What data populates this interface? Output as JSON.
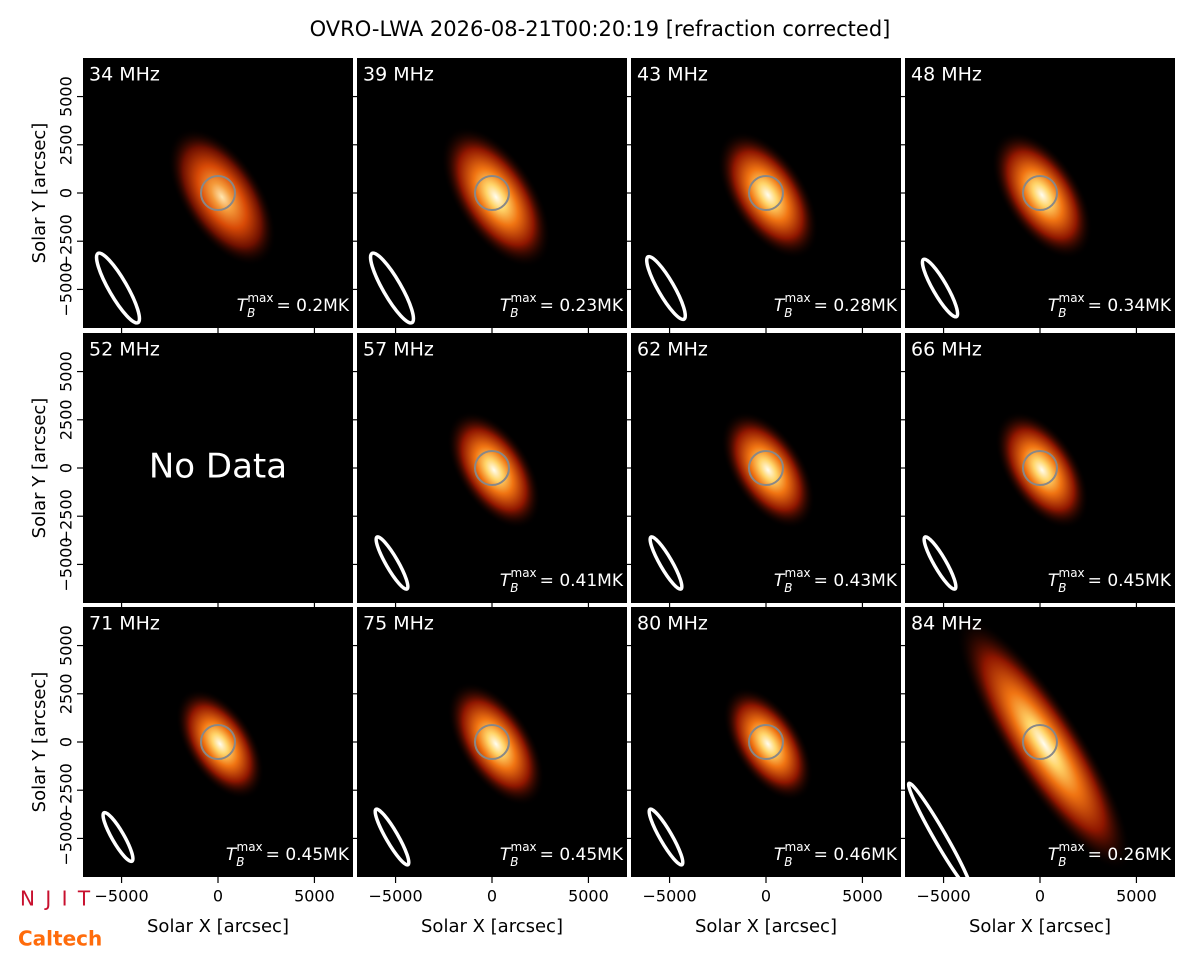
{
  "chart_data": {
    "type": "image-grid",
    "title": "OVRO-LWA 2026-08-21T00:20:19 [refraction corrected]",
    "xlabel": "Solar X [arcsec]",
    "ylabel": "Solar Y [arcsec]",
    "xlim": [
      -7000,
      7000
    ],
    "ylim": [
      -7000,
      7000
    ],
    "xticks": [
      {
        "value": -5000,
        "label": "−5000"
      },
      0,
      5000
    ],
    "yticks": [
      {
        "value": -5000,
        "label": "−5000"
      },
      {
        "value": -2500,
        "label": "−2500"
      },
      0,
      2500,
      5000
    ],
    "tb_symbol": "T",
    "tb_sub": "B",
    "tb_sup": "max",
    "panels": [
      {
        "label": "34 MHz",
        "tb_max_label": "= 0.2MK"
      },
      {
        "label": "39 MHz",
        "tb_max_label": "= 0.23MK"
      },
      {
        "label": "43 MHz",
        "tb_max_label": "= 0.28MK"
      },
      {
        "label": "48 MHz",
        "tb_max_label": "= 0.34MK"
      },
      {
        "label": "52 MHz",
        "note": "No Data"
      },
      {
        "label": "57 MHz",
        "tb_max_label": "= 0.41MK"
      },
      {
        "label": "62 MHz",
        "tb_max_label": "= 0.43MK"
      },
      {
        "label": "66 MHz",
        "tb_max_label": "= 0.45MK"
      },
      {
        "label": "71 MHz",
        "tb_max_label": "= 0.45MK"
      },
      {
        "label": "75 MHz",
        "tb_max_label": "= 0.45MK"
      },
      {
        "label": "80 MHz",
        "tb_max_label": "= 0.46MK"
      },
      {
        "label": "84 MHz",
        "tb_max_label": "= 0.26MK"
      }
    ]
  },
  "logos": {
    "njit": "N J I T",
    "caltech": "Caltech"
  }
}
